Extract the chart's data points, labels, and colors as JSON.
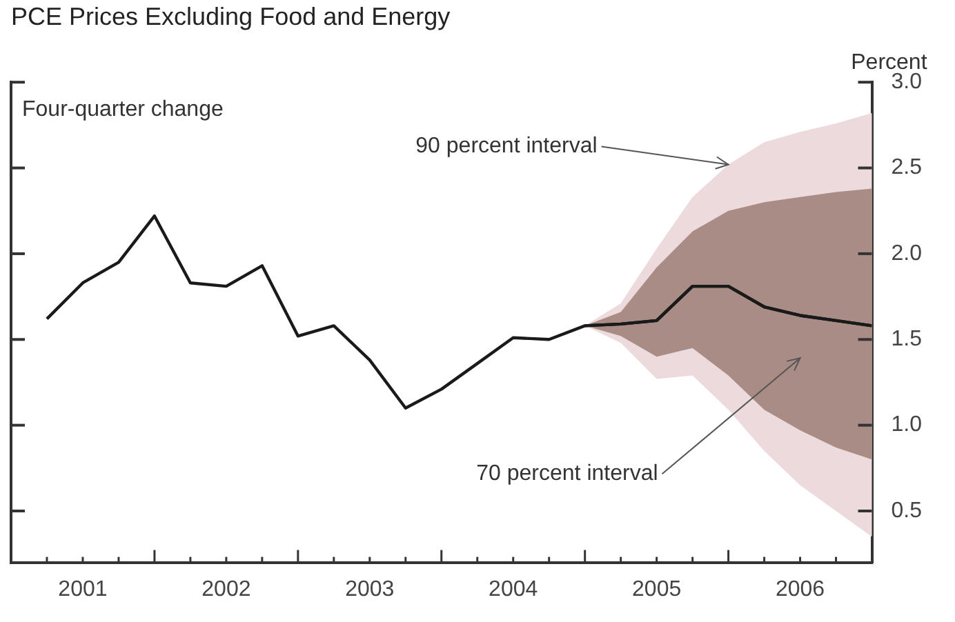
{
  "chart_data": {
    "type": "line",
    "title": "PCE Prices Excluding Food and Energy",
    "ylabel": "Percent",
    "annotations": [
      "Four-quarter change",
      {
        "text": "90 percent interval",
        "x": 2006,
        "y": 2.52
      },
      "70 percent interval"
    ],
    "x": [
      2001.25,
      2001.5,
      2001.75,
      2002,
      2002.25,
      2002.5,
      2002.75,
      2003,
      2003.25,
      2003.5,
      2003.75,
      2004,
      2004.25,
      2004.5,
      2004.75,
      2005,
      2005.25,
      2005.5,
      2005.75,
      2006,
      2006.25,
      2006.5,
      2006.75,
      2007
    ],
    "series": [
      {
        "color": "#1a1a1a",
        "values": [
          1.62,
          1.83,
          1.95,
          2.22,
          1.83,
          1.81,
          1.93,
          1.52,
          1.58,
          1.38,
          1.1,
          1.21,
          1.36,
          1.51,
          1.5,
          1.58,
          1.59,
          1.61,
          1.81,
          1.81,
          1.69,
          1.64,
          1.61,
          1.58
        ],
        "lower": [
          null,
          null,
          null,
          null,
          null,
          null,
          null,
          null,
          null,
          null,
          null,
          null,
          null,
          null,
          null,
          1.58,
          1.52,
          1.4,
          1.45,
          1.29,
          1.09,
          0.97,
          0.87,
          0.8
        ],
        "upper": [
          null,
          null,
          null,
          null,
          null,
          null,
          null,
          null,
          null,
          null,
          null,
          null,
          null,
          null,
          null,
          1.58,
          1.66,
          1.92,
          2.13,
          2.25,
          2.3,
          2.33,
          2.36,
          2.38
        ]
      },
      {
        "color": "#1a1a1a",
        "x": [
          2005,
          2005.25,
          2005.5,
          2005.75,
          2006,
          2006.25,
          2006.5,
          2006.75,
          2007
        ],
        "values": [
          1.58,
          1.59,
          1.61,
          1.81,
          1.81,
          1.69,
          1.64,
          1.61,
          1.58
        ],
        "lower": [
          1.58,
          1.48,
          1.27,
          1.29,
          1.09,
          0.85,
          0.65,
          0.5,
          0.35
        ],
        "upper": [
          1.58,
          1.71,
          2.03,
          2.33,
          2.52,
          2.65,
          2.71,
          2.76,
          2.82
        ]
      }
    ],
    "xlim": [
      2001,
      2007
    ],
    "xticks": [
      {
        "value": 2001.25,
        "label": null
      },
      {
        "value": 2001.5,
        "label": "2001"
      },
      {
        "value": 2001.75,
        "label": null
      },
      {
        "value": 2002,
        "label": null
      },
      {
        "value": 2002.25,
        "label": null
      },
      {
        "value": 2002.5,
        "label": "2002"
      },
      {
        "value": 2002.75,
        "label": null
      },
      {
        "value": 2003,
        "label": null
      },
      {
        "value": 2003.25,
        "label": null
      },
      {
        "value": 2003.5,
        "label": "2003"
      },
      {
        "value": 2003.75,
        "label": null
      },
      {
        "value": 2004,
        "label": null
      },
      {
        "value": 2004.25,
        "label": null
      },
      {
        "value": 2004.5,
        "label": "2004"
      },
      {
        "value": 2004.75,
        "label": null
      },
      {
        "value": 2005,
        "label": null
      },
      {
        "value": 2005.25,
        "label": null
      },
      {
        "value": 2005.5,
        "label": "2005"
      },
      {
        "value": 2005.75,
        "label": null
      },
      {
        "value": 2006,
        "label": null
      },
      {
        "value": 2006.25,
        "label": null
      },
      {
        "value": 2006.5,
        "label": "2006"
      },
      {
        "value": 2006.75,
        "label": null
      },
      {
        "value": 2007,
        "label": null
      }
    ],
    "ylim": [
      0.2,
      3.0
    ],
    "yticks": [
      {
        "value": 0.5,
        "label": "0.5"
      },
      {
        "value": 1,
        "label": "1.0"
      },
      {
        "value": 1.5,
        "label": "1.5"
      },
      {
        "value": 2,
        "label": "2.0"
      },
      {
        "value": 2.5,
        "label": "2.5"
      },
      {
        "value": 3,
        "label": "3.0"
      }
    ],
    "grid": false,
    "legend": false
  }
}
